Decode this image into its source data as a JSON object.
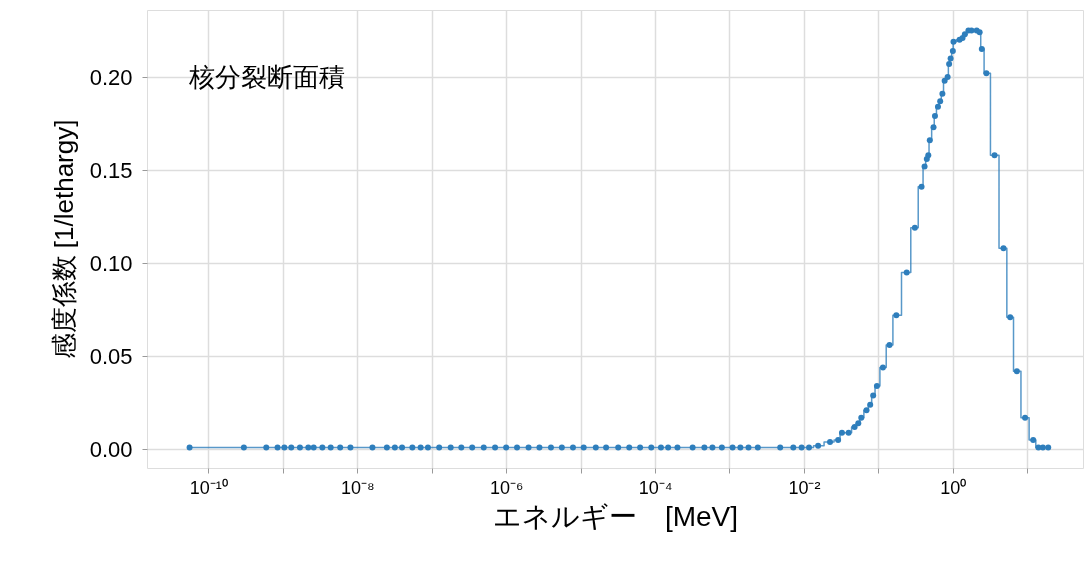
{
  "chart_data": {
    "type": "step",
    "xlabel": "エネルギー　[MeV]",
    "ylabel": "感度係数 [1/lethargy]",
    "annotations": [
      "核分裂断面積"
    ],
    "log": "x",
    "grid": true,
    "marker": "circle",
    "line_style": "solid",
    "xlim": [
      1.5e-11,
      56
    ],
    "ylim": [
      -0.01,
      0.236
    ],
    "xticks": [
      {
        "value": 1e-10,
        "label": "10⁻¹⁰"
      },
      {
        "value": 1e-09,
        "label": null
      },
      {
        "value": 1e-08,
        "label": "10⁻⁸"
      },
      {
        "value": 1e-07,
        "label": null
      },
      {
        "value": 1e-06,
        "label": "10⁻⁶"
      },
      {
        "value": 1e-05,
        "label": null
      },
      {
        "value": 0.0001,
        "label": "10⁻⁴"
      },
      {
        "value": 0.001,
        "label": null
      },
      {
        "value": 0.01,
        "label": "10⁻²"
      },
      {
        "value": 0.1,
        "label": null
      },
      {
        "value": 1,
        "label": "10⁰"
      },
      {
        "value": 10,
        "label": null
      }
    ],
    "yticks": [
      {
        "value": 0,
        "label": "0.00"
      },
      {
        "value": 0.05,
        "label": "0.05"
      },
      {
        "value": 0.1,
        "label": "0.10"
      },
      {
        "value": 0.15,
        "label": "0.15"
      },
      {
        "value": 0.2,
        "label": "0.20"
      }
    ],
    "series": [
      {
        "color": "#2e7ebc",
        "x": [
          5.6e-11,
          3e-10,
          6e-10,
          8.5e-10,
          1.05e-09,
          1.3e-09,
          1.7e-09,
          2.2e-09,
          2.6e-09,
          3.4e-09,
          4.4e-09,
          5.9e-09,
          8.1e-09,
          1.6e-08,
          2.5e-08,
          3.2e-08,
          4e-08,
          5.5e-08,
          7.1e-08,
          8.9e-08,
          1.26e-07,
          1.8e-07,
          2.5e-07,
          3.5e-07,
          5e-07,
          7.1e-07,
          1e-06,
          1.4e-06,
          2e-06,
          2.8e-06,
          4e-06,
          5.6e-06,
          7.9e-06,
          1.1e-05,
          1.6e-05,
          2.2e-05,
          3.2e-05,
          4.5e-05,
          6.3e-05,
          8.9e-05,
          0.00012,
          0.00015,
          0.0002,
          0.00032,
          0.00046,
          0.00059,
          0.00079,
          0.0011,
          0.0014,
          0.0018,
          0.0024,
          0.0048,
          0.0072,
          0.0093,
          0.0117,
          0.0155,
          0.0224,
          0.0288,
          0.0324,
          0.0398,
          0.0479,
          0.0537,
          0.0589,
          0.0692,
          0.0776,
          0.0851,
          0.0955,
          0.115,
          0.141,
          0.174,
          0.24,
          0.309,
          0.38,
          0.417,
          0.447,
          0.468,
          0.49,
          0.55,
          0.575,
          0.631,
          0.676,
          0.724,
          0.776,
          0.851,
          0.891,
          0.933,
          1.0,
          1.02,
          1.23,
          1.35,
          1.45,
          1.62,
          1.78,
          2.09,
          2.29,
          2.45,
          2.82,
          3.63,
          4.79,
          5.89,
          7.24,
          9.33,
          12.0,
          14.1,
          16.2,
          19.1
        ],
        "values": [
          0.001,
          0.001,
          0.001,
          0.001,
          0.001,
          0.001,
          0.001,
          0.001,
          0.001,
          0.001,
          0.001,
          0.001,
          0.001,
          0.001,
          0.001,
          0.001,
          0.001,
          0.001,
          0.001,
          0.001,
          0.001,
          0.001,
          0.001,
          0.001,
          0.001,
          0.001,
          0.001,
          0.001,
          0.001,
          0.001,
          0.001,
          0.001,
          0.001,
          0.001,
          0.001,
          0.001,
          0.001,
          0.001,
          0.001,
          0.001,
          0.001,
          0.001,
          0.001,
          0.001,
          0.001,
          0.001,
          0.001,
          0.001,
          0.001,
          0.001,
          0.001,
          0.001,
          0.001,
          0.001,
          0.001,
          0.002,
          0.004,
          0.005,
          0.009,
          0.009,
          0.012,
          0.014,
          0.017,
          0.021,
          0.024,
          0.029,
          0.034,
          0.044,
          0.056,
          0.072,
          0.095,
          0.119,
          0.141,
          0.152,
          0.156,
          0.158,
          0.166,
          0.173,
          0.179,
          0.184,
          0.187,
          0.191,
          0.198,
          0.2,
          0.207,
          0.21,
          0.214,
          0.219,
          0.22,
          0.221,
          0.223,
          0.225,
          0.225,
          0.225,
          0.224,
          0.215,
          0.202,
          0.158,
          0.108,
          0.071,
          0.042,
          0.017,
          0.005,
          0.001,
          0.001,
          0.001
        ]
      }
    ]
  }
}
